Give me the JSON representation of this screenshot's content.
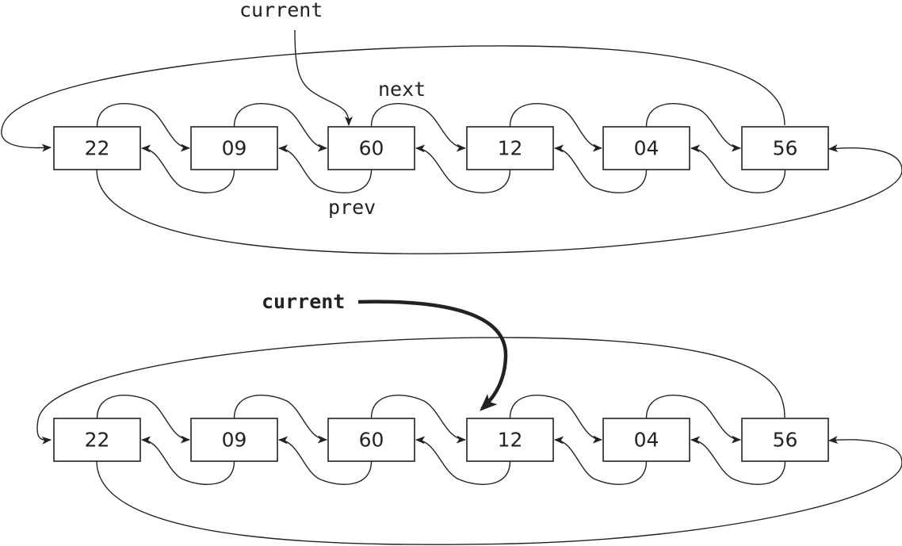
{
  "diagrams": [
    {
      "nodes": [
        "22",
        "09",
        "60",
        "12",
        "04",
        "56"
      ],
      "pointer": {
        "label": "current",
        "target_index": 2,
        "bold": false
      },
      "next_label": "next",
      "prev_label": "prev"
    },
    {
      "nodes": [
        "22",
        "09",
        "60",
        "12",
        "04",
        "56"
      ],
      "pointer": {
        "label": "current",
        "target_index": 3,
        "bold": true
      }
    }
  ]
}
